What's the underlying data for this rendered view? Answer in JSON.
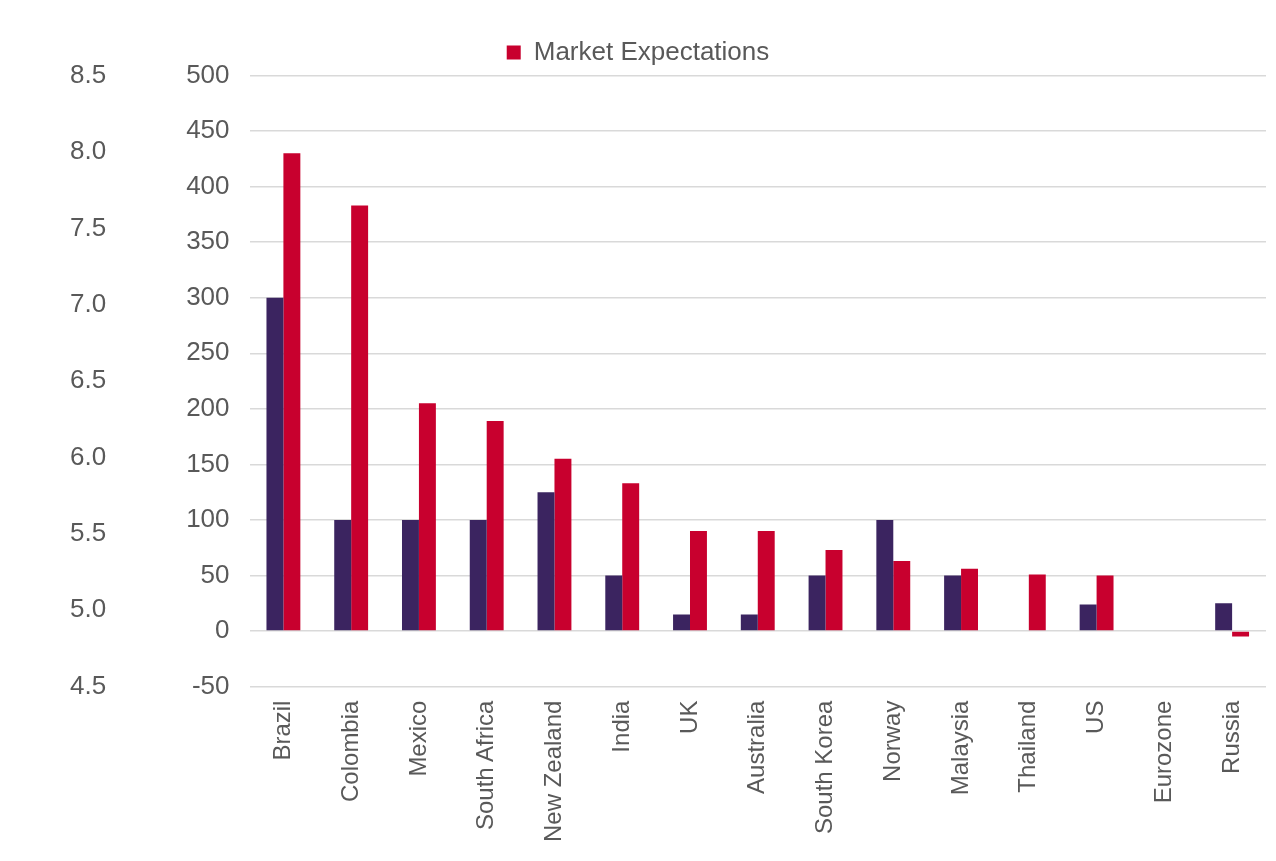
{
  "chart_data": {
    "type": "bar",
    "categories": [
      "Brazil",
      "Colombia",
      "Mexico",
      "South Africa",
      "New Zealand",
      "India",
      "UK",
      "Australia",
      "South Korea",
      "Norway",
      "Malaysia",
      "Thailand",
      "US",
      "Eurozone",
      "Russia"
    ],
    "series": [
      {
        "color": "#3b2460",
        "values": [
          300,
          100,
          100,
          100,
          125,
          50,
          15,
          15,
          50,
          100,
          50,
          0,
          24,
          0,
          25
        ]
      },
      {
        "name": "Market Expectations",
        "color": "#c8002e",
        "values": [
          430,
          383,
          205,
          189,
          155,
          133,
          90,
          90,
          73,
          63,
          56,
          51,
          50,
          0,
          -5
        ]
      }
    ],
    "ylim": [
      -50,
      500
    ],
    "yticks": [
      -50,
      0,
      50,
      100,
      150,
      200,
      250,
      300,
      350,
      400,
      450,
      500
    ],
    "y2lim": [
      4.5,
      8.5
    ],
    "y2ticks": [
      {
        "value": 4.5,
        "label": "4.5"
      },
      {
        "value": 5,
        "label": "5.0"
      },
      {
        "value": 5.5,
        "label": "5.5"
      },
      {
        "value": 6,
        "label": "6.0"
      },
      {
        "value": 6.5,
        "label": "6.5"
      },
      {
        "value": 7,
        "label": "7.0"
      },
      {
        "value": 7.5,
        "label": "7.5"
      },
      {
        "value": 8,
        "label": "8.0"
      },
      {
        "value": 8.5,
        "label": "8.5"
      }
    ],
    "grid": "y",
    "legend": "top"
  }
}
